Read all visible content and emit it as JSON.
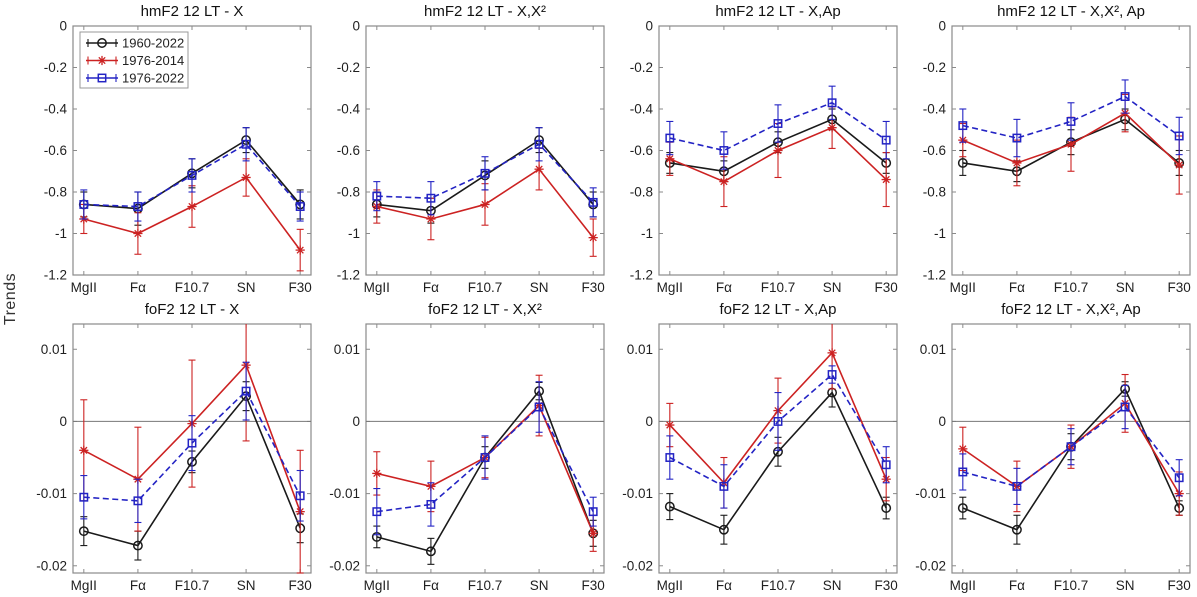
{
  "figure": {
    "ylabel": "Trends",
    "frame_color": "#8a8a8a",
    "tick_text_color": "#1f1f1f",
    "zero_line_color": "#777777"
  },
  "legend": {
    "entries": [
      {
        "label": "1960-2022",
        "color": "#1a1a1a",
        "marker": "circle",
        "line": "solid"
      },
      {
        "label": "1976-2014",
        "color": "#cc2222",
        "marker": "asterisk",
        "line": "solid"
      },
      {
        "label": "1976-2022",
        "color": "#2323c4",
        "marker": "square",
        "line": "dashed"
      }
    ]
  },
  "rows": [
    {
      "ylim": [
        -1.2,
        0
      ],
      "yticks": [
        0,
        -0.2,
        -0.4,
        -0.6,
        -0.8,
        -1,
        -1.2
      ],
      "ytick_labels": [
        "0",
        "-0.2",
        "-0.4",
        "-0.6",
        "-0.8",
        "-1",
        "-1.2"
      ],
      "zero_line": false
    },
    {
      "ylim": [
        -0.021,
        0.0135
      ],
      "yticks": [
        0.01,
        0,
        -0.01,
        -0.02
      ],
      "ytick_labels": [
        "0.01",
        "0",
        "-0.01",
        "-0.02"
      ],
      "zero_line": true
    }
  ],
  "chart_data": [
    {
      "type": "line",
      "title": "hmF2 12 LT - X",
      "row": 0,
      "show_legend": true,
      "categories": [
        "MgII",
        "Fα",
        "F10.7",
        "SN",
        "F30"
      ],
      "series": [
        {
          "name": "1960-2022",
          "values": [
            -0.86,
            -0.88,
            -0.71,
            -0.55,
            -0.86
          ],
          "errors": [
            0.06,
            0.08,
            0.07,
            0.06,
            0.07
          ]
        },
        {
          "name": "1976-2014",
          "values": [
            -0.93,
            -1.0,
            -0.87,
            -0.73,
            -1.08
          ],
          "errors": [
            0.07,
            0.1,
            0.1,
            0.09,
            0.1
          ]
        },
        {
          "name": "1976-2022",
          "values": [
            -0.86,
            -0.87,
            -0.72,
            -0.57,
            -0.87
          ],
          "errors": [
            0.07,
            0.07,
            0.08,
            0.08,
            0.07
          ]
        }
      ]
    },
    {
      "type": "line",
      "title": "hmF2 12 LT - X,X²",
      "row": 0,
      "show_legend": false,
      "categories": [
        "MgII",
        "Fα",
        "F10.7",
        "SN",
        "F30"
      ],
      "series": [
        {
          "name": "1960-2022",
          "values": [
            -0.86,
            -0.89,
            -0.72,
            -0.55,
            -0.86
          ],
          "errors": [
            0.06,
            0.06,
            0.07,
            0.06,
            0.06
          ]
        },
        {
          "name": "1976-2014",
          "values": [
            -0.87,
            -0.93,
            -0.86,
            -0.69,
            -1.02
          ],
          "errors": [
            0.08,
            0.1,
            0.1,
            0.1,
            0.09
          ]
        },
        {
          "name": "1976-2022",
          "values": [
            -0.82,
            -0.83,
            -0.71,
            -0.57,
            -0.85
          ],
          "errors": [
            0.07,
            0.08,
            0.08,
            0.08,
            0.07
          ]
        }
      ]
    },
    {
      "type": "line",
      "title": "hmF2 12 LT - X,Ap",
      "row": 0,
      "show_legend": false,
      "categories": [
        "MgII",
        "Fα",
        "F10.7",
        "SN",
        "F30"
      ],
      "series": [
        {
          "name": "1960-2022",
          "values": [
            -0.66,
            -0.7,
            -0.56,
            -0.45,
            -0.66
          ],
          "errors": [
            0.05,
            0.05,
            0.05,
            0.05,
            0.05
          ]
        },
        {
          "name": "1976-2014",
          "values": [
            -0.64,
            -0.75,
            -0.6,
            -0.49,
            -0.74
          ],
          "errors": [
            0.08,
            0.12,
            0.13,
            0.1,
            0.13
          ]
        },
        {
          "name": "1976-2022",
          "values": [
            -0.54,
            -0.6,
            -0.47,
            -0.37,
            -0.55
          ],
          "errors": [
            0.08,
            0.09,
            0.09,
            0.08,
            0.09
          ]
        }
      ]
    },
    {
      "type": "line",
      "title": "hmF2 12 LT - X,X², Ap",
      "row": 0,
      "show_legend": false,
      "categories": [
        "MgII",
        "Fα",
        "F10.7",
        "SN",
        "F30"
      ],
      "series": [
        {
          "name": "1960-2022",
          "values": [
            -0.66,
            -0.7,
            -0.56,
            -0.45,
            -0.66
          ],
          "errors": [
            0.06,
            0.05,
            0.06,
            0.05,
            0.06
          ]
        },
        {
          "name": "1976-2014",
          "values": [
            -0.55,
            -0.66,
            -0.57,
            -0.42,
            -0.67
          ],
          "errors": [
            0.08,
            0.11,
            0.13,
            0.09,
            0.14
          ]
        },
        {
          "name": "1976-2022",
          "values": [
            -0.48,
            -0.54,
            -0.46,
            -0.34,
            -0.53
          ],
          "errors": [
            0.08,
            0.09,
            0.09,
            0.08,
            0.09
          ]
        }
      ]
    },
    {
      "type": "line",
      "title": "foF2 12 LT - X",
      "row": 1,
      "show_legend": false,
      "categories": [
        "MgII",
        "Fα",
        "F10.7",
        "SN",
        "F30"
      ],
      "series": [
        {
          "name": "1960-2022",
          "values": [
            -0.0152,
            -0.0172,
            -0.0056,
            0.0035,
            -0.0148
          ],
          "errors": [
            0.002,
            0.002,
            0.0015,
            0.002,
            0.002
          ]
        },
        {
          "name": "1976-2014",
          "values": [
            -0.004,
            -0.008,
            -0.0003,
            0.0078,
            -0.0125
          ],
          "errors": [
            0.007,
            0.0072,
            0.0088,
            0.0105,
            0.0085
          ]
        },
        {
          "name": "1976-2022",
          "values": [
            -0.0105,
            -0.011,
            -0.003,
            0.0042,
            -0.0103
          ],
          "errors": [
            0.003,
            0.003,
            0.0038,
            0.004,
            0.0035
          ]
        }
      ]
    },
    {
      "type": "line",
      "title": "foF2 12 LT - X,X²",
      "row": 1,
      "show_legend": false,
      "categories": [
        "MgII",
        "Fα",
        "F10.7",
        "SN",
        "F30"
      ],
      "series": [
        {
          "name": "1960-2022",
          "values": [
            -0.016,
            -0.018,
            -0.005,
            0.0042,
            -0.0155
          ],
          "errors": [
            0.0015,
            0.0018,
            0.0015,
            0.0012,
            0.0018
          ]
        },
        {
          "name": "1976-2014",
          "values": [
            -0.0072,
            -0.009,
            -0.005,
            0.0022,
            -0.0155
          ],
          "errors": [
            0.003,
            0.0035,
            0.0028,
            0.0042,
            0.0025
          ]
        },
        {
          "name": "1976-2022",
          "values": [
            -0.0125,
            -0.0115,
            -0.005,
            0.002,
            -0.0125
          ],
          "errors": [
            0.0032,
            0.003,
            0.003,
            0.0035,
            0.002
          ]
        }
      ]
    },
    {
      "type": "line",
      "title": "foF2 12 LT - X,Ap",
      "row": 1,
      "show_legend": false,
      "categories": [
        "MgII",
        "Fα",
        "F10.7",
        "SN",
        "F30"
      ],
      "series": [
        {
          "name": "1960-2022",
          "values": [
            -0.0118,
            -0.015,
            -0.0042,
            0.004,
            -0.012
          ],
          "errors": [
            0.0018,
            0.002,
            0.002,
            0.002,
            0.0015
          ]
        },
        {
          "name": "1976-2014",
          "values": [
            -0.0005,
            -0.0085,
            0.0015,
            0.0095,
            -0.008
          ],
          "errors": [
            0.003,
            0.0035,
            0.0045,
            0.005,
            0.003
          ]
        },
        {
          "name": "1976-2022",
          "values": [
            -0.005,
            -0.009,
            0.0,
            0.0065,
            -0.006
          ],
          "errors": [
            0.003,
            0.003,
            0.004,
            0.0012,
            0.0025
          ]
        }
      ]
    },
    {
      "type": "line",
      "title": "foF2 12 LT - X,X², Ap",
      "row": 1,
      "show_legend": false,
      "categories": [
        "MgII",
        "Fα",
        "F10.7",
        "SN",
        "F30"
      ],
      "series": [
        {
          "name": "1960-2022",
          "values": [
            -0.012,
            -0.015,
            -0.0035,
            0.0045,
            -0.012
          ],
          "errors": [
            0.0015,
            0.002,
            0.0018,
            0.001,
            0.001
          ]
        },
        {
          "name": "1976-2014",
          "values": [
            -0.0038,
            -0.009,
            -0.0035,
            0.0025,
            -0.01
          ],
          "errors": [
            0.003,
            0.0035,
            0.003,
            0.004,
            0.003
          ]
        },
        {
          "name": "1976-2022",
          "values": [
            -0.007,
            -0.009,
            -0.0035,
            0.002,
            -0.0078
          ],
          "errors": [
            0.0025,
            0.0025,
            0.0025,
            0.003,
            0.0025
          ]
        }
      ]
    }
  ]
}
